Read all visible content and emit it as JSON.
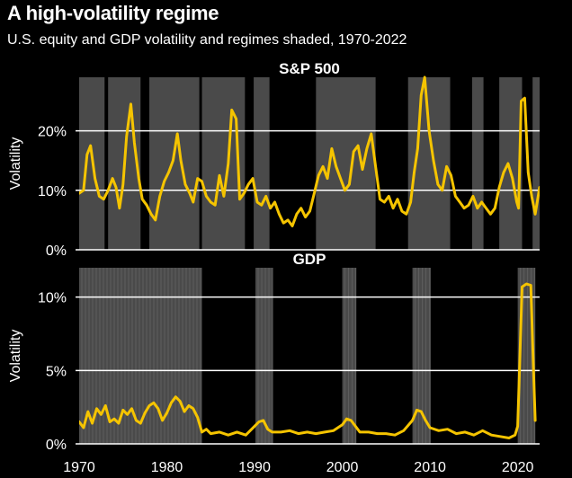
{
  "title": "A high-volatility regime",
  "subtitle": "U.S. equity and GDP volatility and regimes shaded, 1970-2022",
  "colors": {
    "background": "#000000",
    "line": "#f5c400",
    "shade": "#4a4a4a",
    "grid": "#ffffff",
    "text": "#ffffff"
  },
  "chart_data": [
    {
      "type": "line",
      "panel_title": "S&P 500",
      "ylabel": "Volatility",
      "xlim": [
        1970,
        2022.5
      ],
      "ylim": [
        0,
        29
      ],
      "yticks": [
        {
          "v": 0,
          "label": "0%"
        },
        {
          "v": 10,
          "label": "10%"
        },
        {
          "v": 20,
          "label": "20%"
        }
      ],
      "grid": true,
      "regimes": [
        [
          1970.0,
          1972.9
        ],
        [
          1973.3,
          1977.0
        ],
        [
          1978.0,
          1983.7
        ],
        [
          1984.0,
          1988.9
        ],
        [
          1989.9,
          1991.7
        ],
        [
          1997.0,
          2003.8
        ],
        [
          2007.5,
          2012.3
        ],
        [
          2014.8,
          2016.1
        ],
        [
          2017.9,
          2020.5
        ],
        [
          2021.7,
          2022.5
        ]
      ],
      "series": [
        {
          "x": [
            1970.0,
            1970.5,
            1970.9,
            1971.3,
            1971.8,
            1972.3,
            1972.8,
            1973.3,
            1973.8,
            1974.2,
            1974.6,
            1975.0,
            1975.4,
            1975.9,
            1976.3,
            1976.8,
            1977.2,
            1977.7,
            1978.2,
            1978.7,
            1979.2,
            1979.7,
            1980.2,
            1980.7,
            1981.2,
            1981.6,
            1982.1,
            1982.6,
            1983.0,
            1983.5,
            1984.0,
            1984.5,
            1985.0,
            1985.5,
            1986.0,
            1986.5,
            1987.0,
            1987.4,
            1987.9,
            1988.3,
            1988.8,
            1989.3,
            1989.8,
            1990.3,
            1990.8,
            1991.3,
            1991.8,
            1992.3,
            1992.8,
            1993.3,
            1993.8,
            1994.3,
            1994.8,
            1995.3,
            1995.8,
            1996.3,
            1996.8,
            1997.3,
            1997.8,
            1998.3,
            1998.8,
            1999.3,
            1999.8,
            2000.3,
            2000.8,
            2001.3,
            2001.8,
            2002.3,
            2002.8,
            2003.3,
            2003.8,
            2004.3,
            2004.8,
            2005.3,
            2005.8,
            2006.3,
            2006.8,
            2007.3,
            2007.8,
            2008.2,
            2008.6,
            2009.0,
            2009.4,
            2009.9,
            2010.4,
            2010.9,
            2011.4,
            2011.9,
            2012.4,
            2012.9,
            2013.4,
            2013.9,
            2014.4,
            2014.9,
            2015.4,
            2015.9,
            2016.4,
            2016.9,
            2017.4,
            2017.9,
            2018.4,
            2018.9,
            2019.4,
            2019.9,
            2020.1,
            2020.4,
            2020.8,
            2021.2,
            2021.6,
            2022.0,
            2022.5
          ],
          "y": [
            9.5,
            10.0,
            16.0,
            17.5,
            12.0,
            9.0,
            8.5,
            10.0,
            12.0,
            10.5,
            7.0,
            11.0,
            19.0,
            24.5,
            18.0,
            12.0,
            8.5,
            7.5,
            6.0,
            5.0,
            9.0,
            11.5,
            13.0,
            15.0,
            19.5,
            15.0,
            11.0,
            9.5,
            8.0,
            12.0,
            11.5,
            9.0,
            8.0,
            7.5,
            12.5,
            9.0,
            14.5,
            23.5,
            22.0,
            8.5,
            9.5,
            11.0,
            12.0,
            8.0,
            7.5,
            9.0,
            7.0,
            8.0,
            6.0,
            4.5,
            5.0,
            4.0,
            6.0,
            7.0,
            5.5,
            6.5,
            9.5,
            12.5,
            14.0,
            12.0,
            17.0,
            14.0,
            12.0,
            10.0,
            11.0,
            16.5,
            17.5,
            13.5,
            17.0,
            19.5,
            14.0,
            8.5,
            8.0,
            9.0,
            7.0,
            8.5,
            6.5,
            6.0,
            8.0,
            13.0,
            17.0,
            26.0,
            29.0,
            20.0,
            15.0,
            11.0,
            10.0,
            14.0,
            12.5,
            9.0,
            8.0,
            7.0,
            7.5,
            9.0,
            7.0,
            8.0,
            7.0,
            6.0,
            7.0,
            10.5,
            13.0,
            14.5,
            12.0,
            8.0,
            7.0,
            25.0,
            25.5,
            13.0,
            9.0,
            6.0,
            10.5
          ]
        }
      ]
    },
    {
      "type": "line",
      "panel_title": "GDP",
      "ylabel": "Volatility",
      "xlim": [
        1970,
        2022.5
      ],
      "ylim": [
        0,
        12
      ],
      "yticks": [
        {
          "v": 0,
          "label": "0%"
        },
        {
          "v": 5,
          "label": "5%"
        },
        {
          "v": 10,
          "label": "10%"
        }
      ],
      "xticks": [
        {
          "v": 1970,
          "label": "1970"
        },
        {
          "v": 1980,
          "label": "1980"
        },
        {
          "v": 1990,
          "label": "1990"
        },
        {
          "v": 2000,
          "label": "2000"
        },
        {
          "v": 2010,
          "label": "2010"
        },
        {
          "v": 2020,
          "label": "2020"
        }
      ],
      "grid": true,
      "regimes": [
        [
          1970.0,
          1984.0
        ],
        [
          1990.1,
          1992.1
        ],
        [
          2000.0,
          2001.6
        ],
        [
          2008.0,
          2010.1
        ],
        [
          2020.0,
          2022.0
        ]
      ],
      "series": [
        {
          "x": [
            1970.0,
            1970.5,
            1971.0,
            1971.5,
            1972.0,
            1972.5,
            1973.0,
            1973.5,
            1974.0,
            1974.5,
            1975.0,
            1975.5,
            1976.0,
            1976.5,
            1977.0,
            1977.5,
            1978.0,
            1978.5,
            1979.0,
            1979.5,
            1980.0,
            1980.5,
            1981.0,
            1981.5,
            1982.0,
            1982.5,
            1983.0,
            1983.5,
            1984.0,
            1984.5,
            1985.0,
            1986.0,
            1987.0,
            1988.0,
            1989.0,
            1990.0,
            1990.5,
            1991.0,
            1991.5,
            1992.0,
            1993.0,
            1994.0,
            1995.0,
            1996.0,
            1997.0,
            1998.0,
            1999.0,
            2000.0,
            2000.5,
            2001.0,
            2001.5,
            2002.0,
            2003.0,
            2004.0,
            2005.0,
            2006.0,
            2007.0,
            2008.0,
            2008.5,
            2009.0,
            2009.5,
            2010.0,
            2011.0,
            2012.0,
            2013.0,
            2014.0,
            2015.0,
            2016.0,
            2017.0,
            2018.0,
            2019.0,
            2019.7,
            2020.0,
            2020.2,
            2020.5,
            2021.0,
            2021.5,
            2021.8,
            2022.0
          ],
          "y": [
            1.5,
            1.1,
            2.2,
            1.4,
            2.4,
            2.0,
            2.6,
            1.5,
            1.7,
            1.4,
            2.3,
            2.0,
            2.4,
            1.6,
            1.4,
            2.1,
            2.6,
            2.8,
            2.4,
            1.6,
            2.1,
            2.8,
            3.2,
            2.9,
            2.2,
            2.6,
            2.4,
            1.8,
            0.8,
            1.0,
            0.7,
            0.8,
            0.6,
            0.8,
            0.6,
            1.2,
            1.5,
            1.6,
            1.0,
            0.8,
            0.8,
            0.9,
            0.7,
            0.8,
            0.7,
            0.8,
            0.9,
            1.3,
            1.7,
            1.6,
            1.2,
            0.8,
            0.8,
            0.7,
            0.7,
            0.6,
            0.9,
            1.6,
            2.3,
            2.2,
            1.6,
            1.1,
            0.9,
            1.0,
            0.7,
            0.8,
            0.6,
            0.9,
            0.6,
            0.5,
            0.4,
            0.6,
            1.2,
            5.0,
            10.7,
            10.9,
            10.8,
            5.0,
            1.6
          ]
        }
      ]
    }
  ]
}
